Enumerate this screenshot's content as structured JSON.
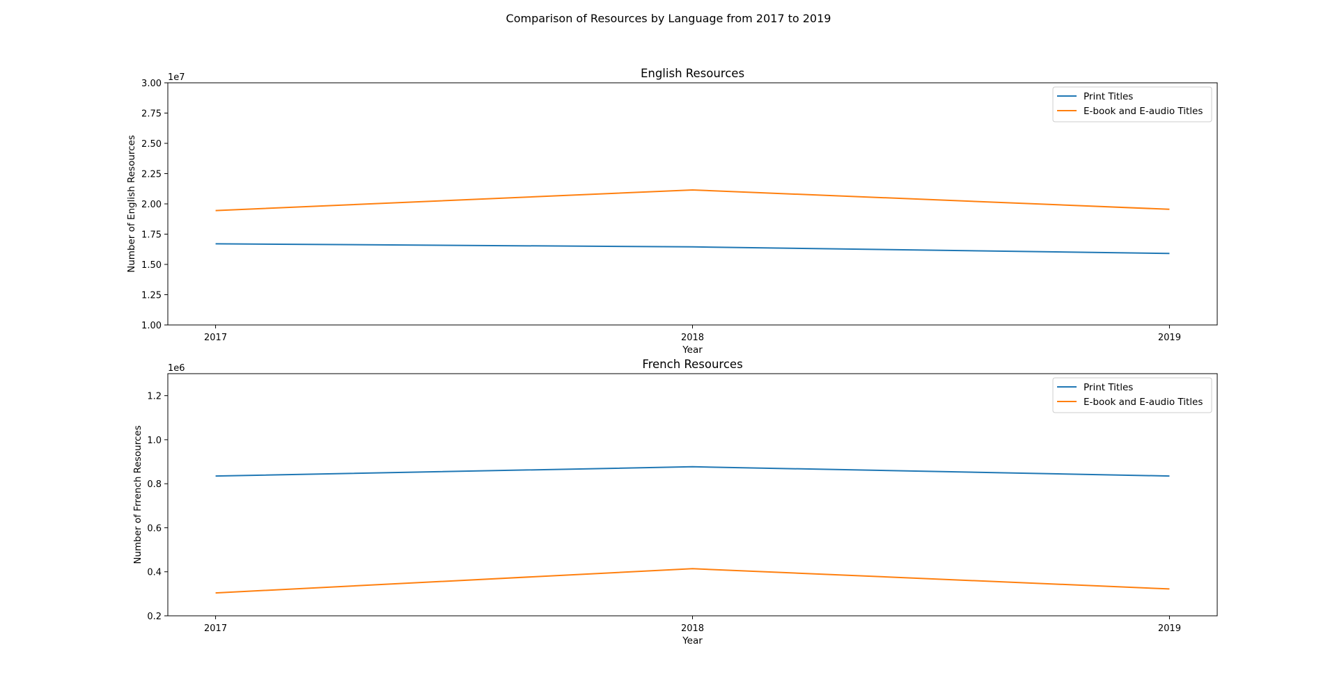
{
  "figure": {
    "suptitle": "Comparison of Resources by Language from 2017 to 2019"
  },
  "chart_data": [
    {
      "type": "line",
      "title": "English Resources",
      "xlabel": "Year",
      "ylabel": "Number of English Resources",
      "x": [
        "2017",
        "2018",
        "2019"
      ],
      "ylim": [
        10000000,
        30000000
      ],
      "yticks": [
        10000000,
        12500000,
        15000000,
        17500000,
        20000000,
        22500000,
        25000000,
        27500000,
        30000000
      ],
      "ytick_labels": [
        "1.00",
        "1.25",
        "1.50",
        "1.75",
        "2.00",
        "2.25",
        "2.50",
        "2.75",
        "3.00"
      ],
      "offset_text": "1e7",
      "legend_position": "upper right",
      "series": [
        {
          "name": "Print Titles",
          "color": "#1f77b4",
          "values": [
            16700000,
            16450000,
            15900000
          ]
        },
        {
          "name": "E-book and E-audio Titles",
          "color": "#ff7f0e",
          "values": [
            19450000,
            21150000,
            19550000
          ]
        }
      ]
    },
    {
      "type": "line",
      "title": "French Resources",
      "xlabel": "Year",
      "ylabel": "Number of Frrench Resources",
      "x": [
        "2017",
        "2018",
        "2019"
      ],
      "ylim": [
        200000,
        1300000
      ],
      "yticks": [
        200000,
        400000,
        600000,
        800000,
        1000000,
        1200000
      ],
      "ytick_labels": [
        "0.2",
        "0.4",
        "0.6",
        "0.8",
        "1.0",
        "1.2"
      ],
      "offset_text": "1e6",
      "legend_position": "upper right",
      "series": [
        {
          "name": "Print Titles",
          "color": "#1f77b4",
          "values": [
            835000,
            877000,
            835000
          ]
        },
        {
          "name": "E-book and E-audio Titles",
          "color": "#ff7f0e",
          "values": [
            304000,
            414000,
            322000
          ]
        }
      ]
    }
  ]
}
